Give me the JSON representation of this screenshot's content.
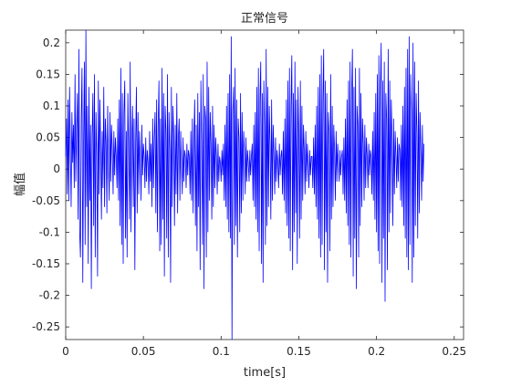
{
  "chart_data": {
    "type": "line",
    "title": "正常信号",
    "xlabel": "time[s]",
    "ylabel": "幅值",
    "xlim": [
      0,
      0.256
    ],
    "ylim": [
      -0.27,
      0.22
    ],
    "xticks": [
      0,
      0.05,
      0.1,
      0.15,
      0.2,
      0.25
    ],
    "xtick_labels": [
      "0",
      "0.05",
      "0.1",
      "0.15",
      "0.2",
      "0.25"
    ],
    "yticks": [
      -0.25,
      -0.2,
      -0.15,
      -0.1,
      -0.05,
      0,
      0.05,
      0.1,
      0.15,
      0.2
    ],
    "ytick_labels": [
      "-0.25",
      "-0.2",
      "-0.15",
      "-0.1",
      "-0.05",
      "0",
      "0.05",
      "0.1",
      "0.15",
      "0.2"
    ],
    "grid": false,
    "line_color": "#0000ff",
    "sample_interval": 0.0005,
    "series": [
      {
        "values": [
          0.02,
          0.08,
          -0.04,
          0.11,
          -0.05,
          0.13,
          0.03,
          -0.06,
          0.09,
          0.01,
          0.07,
          -0.03,
          0.15,
          -0.02,
          0.06,
          0.12,
          -0.08,
          0.19,
          -0.1,
          -0.14,
          0.08,
          0.16,
          -0.18,
          0.04,
          0.17,
          -0.12,
          0.22,
          -0.06,
          0.1,
          -0.15,
          0.13,
          -0.05,
          0.07,
          -0.19,
          0.05,
          0.12,
          -0.09,
          0.15,
          -0.14,
          0.09,
          0.02,
          -0.17,
          0.14,
          -0.04,
          0.11,
          0.03,
          -0.08,
          0.06,
          -0.03,
          0.13,
          -0.06,
          0.08,
          0.04,
          -0.07,
          0.1,
          0.01,
          -0.05,
          0.09,
          -0.02,
          0.07,
          0.03,
          -0.04,
          0.06,
          -0.01,
          0.05,
          0.02,
          -0.03,
          0.08,
          -0.05,
          0.11,
          -0.09,
          0.16,
          -0.12,
          0.12,
          -0.15,
          0.09,
          0.14,
          -0.11,
          0.06,
          -0.14,
          0.12,
          0.03,
          -0.08,
          0.17,
          -0.1,
          0.05,
          0.1,
          -0.06,
          0.08,
          -0.16,
          0.04,
          0.13,
          -0.07,
          0.09,
          -0.04,
          0.06,
          0.02,
          -0.05,
          0.07,
          -0.01,
          0.04,
          0.02,
          -0.03,
          0.05,
          -0.02,
          0.03,
          0.01,
          -0.04,
          0.06,
          -0.02,
          0.04,
          -0.06,
          0.08,
          -0.03,
          0.05,
          0.09,
          -0.07,
          0.11,
          -0.1,
          0.07,
          0.14,
          -0.13,
          0.08,
          -0.12,
          0.16,
          -0.08,
          0.12,
          -0.17,
          0.1,
          0.06,
          -0.11,
          0.15,
          -0.14,
          0.09,
          0.03,
          -0.18,
          0.13,
          -0.06,
          0.1,
          0.05,
          -0.09,
          0.07,
          -0.04,
          0.12,
          -0.07,
          0.05,
          0.08,
          -0.05,
          0.06,
          0.01,
          -0.04,
          0.05,
          -0.02,
          0.03,
          0.02,
          -0.03,
          0.04,
          -0.01,
          0.03,
          0.02,
          -0.04,
          0.06,
          -0.05,
          0.08,
          -0.07,
          0.05,
          0.11,
          -0.09,
          0.07,
          -0.13,
          0.12,
          -0.06,
          0.09,
          -0.16,
          0.14,
          0.04,
          -0.12,
          0.15,
          -0.19,
          0.1,
          0.08,
          -0.14,
          0.17,
          -0.1,
          0.13,
          -0.05,
          0.09,
          0.04,
          -0.08,
          0.1,
          -0.06,
          0.07,
          -0.03,
          0.05,
          0.02,
          -0.04,
          0.04,
          -0.02,
          0.02,
          0.01,
          -0.02,
          0.03,
          -0.01,
          0.04,
          -0.05,
          0.07,
          -0.06,
          0.1,
          -0.08,
          0.12,
          -0.1,
          0.15,
          -0.11,
          0.21,
          -0.27,
          0.09,
          0.13,
          -0.12,
          0.16,
          -0.09,
          0.11,
          -0.14,
          0.08,
          0.05,
          -0.1,
          0.12,
          -0.07,
          0.09,
          -0.05,
          0.06,
          0.03,
          -0.04,
          0.05,
          -0.02,
          0.03,
          0.01,
          -0.02,
          0.03,
          -0.01,
          0.02,
          0.04,
          -0.05,
          0.07,
          -0.06,
          0.09,
          -0.08,
          0.13,
          -0.1,
          0.16,
          -0.13,
          0.11,
          0.17,
          -0.15,
          0.12,
          -0.18,
          0.14,
          0.07,
          -0.12,
          0.19,
          -0.09,
          0.13,
          -0.06,
          0.1,
          0.04,
          -0.08,
          0.11,
          -0.05,
          0.07,
          0.02,
          -0.04,
          0.05,
          -0.02,
          0.03,
          0.01,
          -0.03,
          0.04,
          -0.01,
          0.02,
          0.03,
          -0.04,
          0.06,
          -0.05,
          0.08,
          -0.07,
          0.11,
          -0.09,
          0.14,
          -0.11,
          0.16,
          -0.13,
          0.1,
          0.18,
          -0.16,
          0.12,
          -0.1,
          0.17,
          -0.07,
          0.11,
          -0.15,
          0.13,
          0.05,
          -0.11,
          0.14,
          -0.08,
          0.1,
          -0.05,
          0.07,
          0.03,
          -0.04,
          0.06,
          -0.02,
          0.04,
          0.01,
          -0.03,
          0.03,
          -0.01,
          0.02,
          0.02,
          -0.03,
          0.05,
          -0.04,
          0.07,
          -0.06,
          0.1,
          -0.08,
          0.13,
          -0.11,
          0.15,
          -0.14,
          0.18,
          -0.12,
          0.11,
          0.19,
          -0.16,
          0.14,
          -0.1,
          0.12,
          -0.18,
          0.09,
          0.06,
          -0.13,
          0.15,
          -0.08,
          0.1,
          -0.06,
          0.07,
          0.03,
          -0.05,
          0.06,
          -0.02,
          0.04,
          0.01,
          -0.02,
          0.03,
          -0.01,
          0.02,
          0.03,
          -0.04,
          0.05,
          -0.05,
          0.08,
          -0.07,
          0.11,
          -0.09,
          0.14,
          -0.12,
          0.17,
          -0.14,
          0.12,
          0.19,
          -0.17,
          0.13,
          -0.11,
          0.16,
          -0.19,
          0.1,
          0.07,
          -0.14,
          0.16,
          -0.09,
          0.12,
          -0.06,
          0.08,
          0.04,
          -0.05,
          0.07,
          -0.03,
          0.05,
          0.02,
          -0.03,
          0.04,
          -0.01,
          0.03,
          0.02,
          -0.04,
          0.06,
          -0.05,
          0.09,
          -0.08,
          0.12,
          -0.1,
          0.15,
          -0.13,
          0.18,
          -0.15,
          0.13,
          0.2,
          -0.18,
          0.14,
          -0.11,
          0.17,
          -0.21,
          0.12,
          0.08,
          -0.16,
          0.19,
          -0.1,
          0.14,
          -0.07,
          0.11,
          0.05,
          -0.09,
          0.08,
          -0.04,
          0.06,
          0.02,
          -0.03,
          0.05,
          -0.02,
          0.04,
          0.03,
          -0.05,
          0.07,
          -0.06,
          0.1,
          -0.09,
          0.13,
          -0.11,
          0.16,
          -0.14,
          0.19,
          -0.16,
          0.21,
          -0.12,
          0.15,
          0.09,
          -0.18,
          0.2,
          -0.14,
          0.17,
          -0.09,
          0.12,
          0.06,
          -0.11,
          0.14,
          -0.07,
          0.09,
          0.03,
          -0.05,
          0.07,
          -0.02,
          0.04
        ]
      }
    ]
  }
}
